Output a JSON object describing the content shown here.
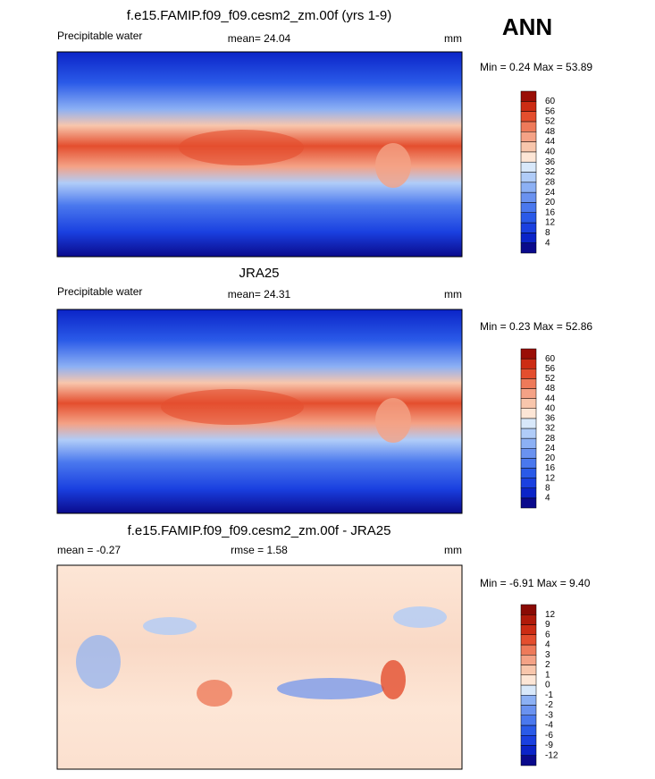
{
  "season": "ANN",
  "panels": [
    {
      "title": "f.e15.FAMIP.f09_f09.cesm2_zm.00f (yrs 1-9)",
      "left": "Precipitable water",
      "center": "mean=  24.04",
      "right": "mm",
      "minmax": "Min =   0.24 Max =  53.89",
      "colorbar": {
        "labels": [
          4,
          8,
          12,
          16,
          20,
          24,
          28,
          32,
          36,
          40,
          44,
          48,
          52,
          56,
          60
        ],
        "colors": [
          "#0a0a8c",
          "#0b24c8",
          "#1a40e0",
          "#2a5ae8",
          "#4a78ee",
          "#6a92f0",
          "#8cb0f4",
          "#b0ccf8",
          "#d8e8fa",
          "#fde6d6",
          "#f8c6ac",
          "#f4a286",
          "#ee7a5a",
          "#e44e2e",
          "#cc2c14",
          "#9a0e06"
        ]
      }
    },
    {
      "title": "JRA25",
      "left": "Precipitable water",
      "center": "mean=  24.31",
      "right": "mm",
      "minmax": "Min =   0.23 Max =  52.86",
      "colorbar": {
        "labels": [
          4,
          8,
          12,
          16,
          20,
          24,
          28,
          32,
          36,
          40,
          44,
          48,
          52,
          56,
          60
        ],
        "colors": [
          "#0a0a8c",
          "#0b24c8",
          "#1a40e0",
          "#2a5ae8",
          "#4a78ee",
          "#6a92f0",
          "#8cb0f4",
          "#b0ccf8",
          "#d8e8fa",
          "#fde6d6",
          "#f8c6ac",
          "#f4a286",
          "#ee7a5a",
          "#e44e2e",
          "#cc2c14",
          "#9a0e06"
        ]
      }
    },
    {
      "title": "f.e15.FAMIP.f09_f09.cesm2_zm.00f - JRA25",
      "left": "mean =  -0.27",
      "center": "rmse =   1.58",
      "right": "mm",
      "minmax": "Min =  -6.91 Max =   9.40",
      "colorbar": {
        "labels": [
          -12,
          -9,
          -6,
          -4,
          -3,
          -2,
          -1,
          0,
          1,
          2,
          3,
          4,
          6,
          9,
          12
        ],
        "colors": [
          "#0a0a8c",
          "#0b24c8",
          "#1a40e0",
          "#2a5ae8",
          "#4a78ee",
          "#6a92f0",
          "#8cb0f4",
          "#d8e8fa",
          "#fde6d6",
          "#f8c6ac",
          "#f4a286",
          "#ee7a5a",
          "#e44e2e",
          "#cc2c14",
          "#b01a0a",
          "#8a0a04"
        ]
      }
    }
  ]
}
